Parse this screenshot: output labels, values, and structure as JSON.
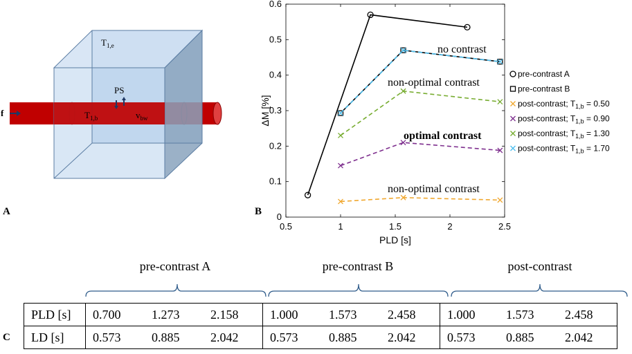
{
  "panel_a": {
    "letter": "A",
    "labels": {
      "t1e": "T1,e",
      "t1e_main": "T",
      "t1e_sub": "1,e",
      "t1b_main": "T",
      "t1b_sub": "1,b",
      "vbw_main": "v",
      "vbw_sub": "bw",
      "ps": "PS",
      "f": "f"
    },
    "colors": {
      "cube_face": "#b9d3ec",
      "cube_side": "#8aa3bd",
      "vessel": "#c00000",
      "vessel_dark": "#8a0000",
      "arrow": "#1f3864"
    }
  },
  "panel_b": {
    "letter": "B",
    "annotations": {
      "no_contrast": "no contrast",
      "non_optimal_top": "non-optimal contrast",
      "optimal": "optimal contrast",
      "non_optimal_bottom": "non-optimal contrast"
    }
  },
  "chart_data": {
    "type": "line",
    "title": "",
    "xlabel": "PLD [s]",
    "ylabel": "ΔM [%]",
    "xlim": [
      0.5,
      2.5
    ],
    "ylim": [
      0,
      0.6
    ],
    "xticks": [
      "0.5",
      "1",
      "1.5",
      "2",
      "2.5"
    ],
    "yticks": [
      "0",
      "0.1",
      "0.2",
      "0.3",
      "0.4",
      "0.5",
      "0.6"
    ],
    "legend_position": "right",
    "series": [
      {
        "name": "pre-contrast A",
        "legend_main": "pre-contrast A",
        "legend_sub": "",
        "legend_tail": "",
        "marker": "circle",
        "style": "solid",
        "color": "#000000",
        "x": [
          0.7,
          1.273,
          2.158
        ],
        "y": [
          0.062,
          0.57,
          0.535
        ]
      },
      {
        "name": "pre-contrast B",
        "legend_main": "pre-contrast B",
        "legend_sub": "",
        "legend_tail": "",
        "marker": "square",
        "style": "solid",
        "color": "#000000",
        "x": [
          1.0,
          1.573,
          2.458
        ],
        "y": [
          0.293,
          0.47,
          0.438
        ]
      },
      {
        "name": "post-contrast; T1,b = 0.50",
        "legend_main": "post-contrast; T",
        "legend_sub": "1,b",
        "legend_tail": " = 0.50",
        "marker": "x",
        "style": "dashed",
        "color": "#f0a830",
        "x": [
          1.0,
          1.573,
          2.458
        ],
        "y": [
          0.044,
          0.055,
          0.048
        ]
      },
      {
        "name": "post-contrast; T1,b = 0.90",
        "legend_main": "post-contrast; T",
        "legend_sub": "1,b",
        "legend_tail": " = 0.90",
        "marker": "x",
        "style": "dashed",
        "color": "#7e2f8e",
        "x": [
          1.0,
          1.573,
          2.458
        ],
        "y": [
          0.145,
          0.21,
          0.188
        ]
      },
      {
        "name": "post-contrast; T1,b = 1.30",
        "legend_main": "post-contrast; T",
        "legend_sub": "1,b",
        "legend_tail": " = 1.30",
        "marker": "x",
        "style": "dashed",
        "color": "#77ac30",
        "x": [
          1.0,
          1.573,
          2.458
        ],
        "y": [
          0.23,
          0.355,
          0.325
        ]
      },
      {
        "name": "post-contrast; T1,b = 1.70",
        "legend_main": "post-contrast; T",
        "legend_sub": "1,b",
        "legend_tail": " = 1.70",
        "marker": "x",
        "style": "dashed",
        "color": "#4dbeee",
        "x": [
          1.0,
          1.573,
          2.458
        ],
        "y": [
          0.293,
          0.47,
          0.438
        ]
      }
    ]
  },
  "panel_c": {
    "letter": "C",
    "groups": [
      "pre-contrast A",
      "pre-contrast B",
      "post-contrast"
    ],
    "rows": [
      {
        "label": "PLD [s]",
        "groups": [
          [
            "0.700",
            "1.273",
            "2.158"
          ],
          [
            "1.000",
            "1.573",
            "2.458"
          ],
          [
            "1.000",
            "1.573",
            "2.458"
          ]
        ]
      },
      {
        "label": "LD [s]",
        "groups": [
          [
            "0.573",
            "0.885",
            "2.042"
          ],
          [
            "0.573",
            "0.885",
            "2.042"
          ],
          [
            "0.573",
            "0.885",
            "2.042"
          ]
        ]
      }
    ],
    "brace_color": "#2e5b8a"
  }
}
